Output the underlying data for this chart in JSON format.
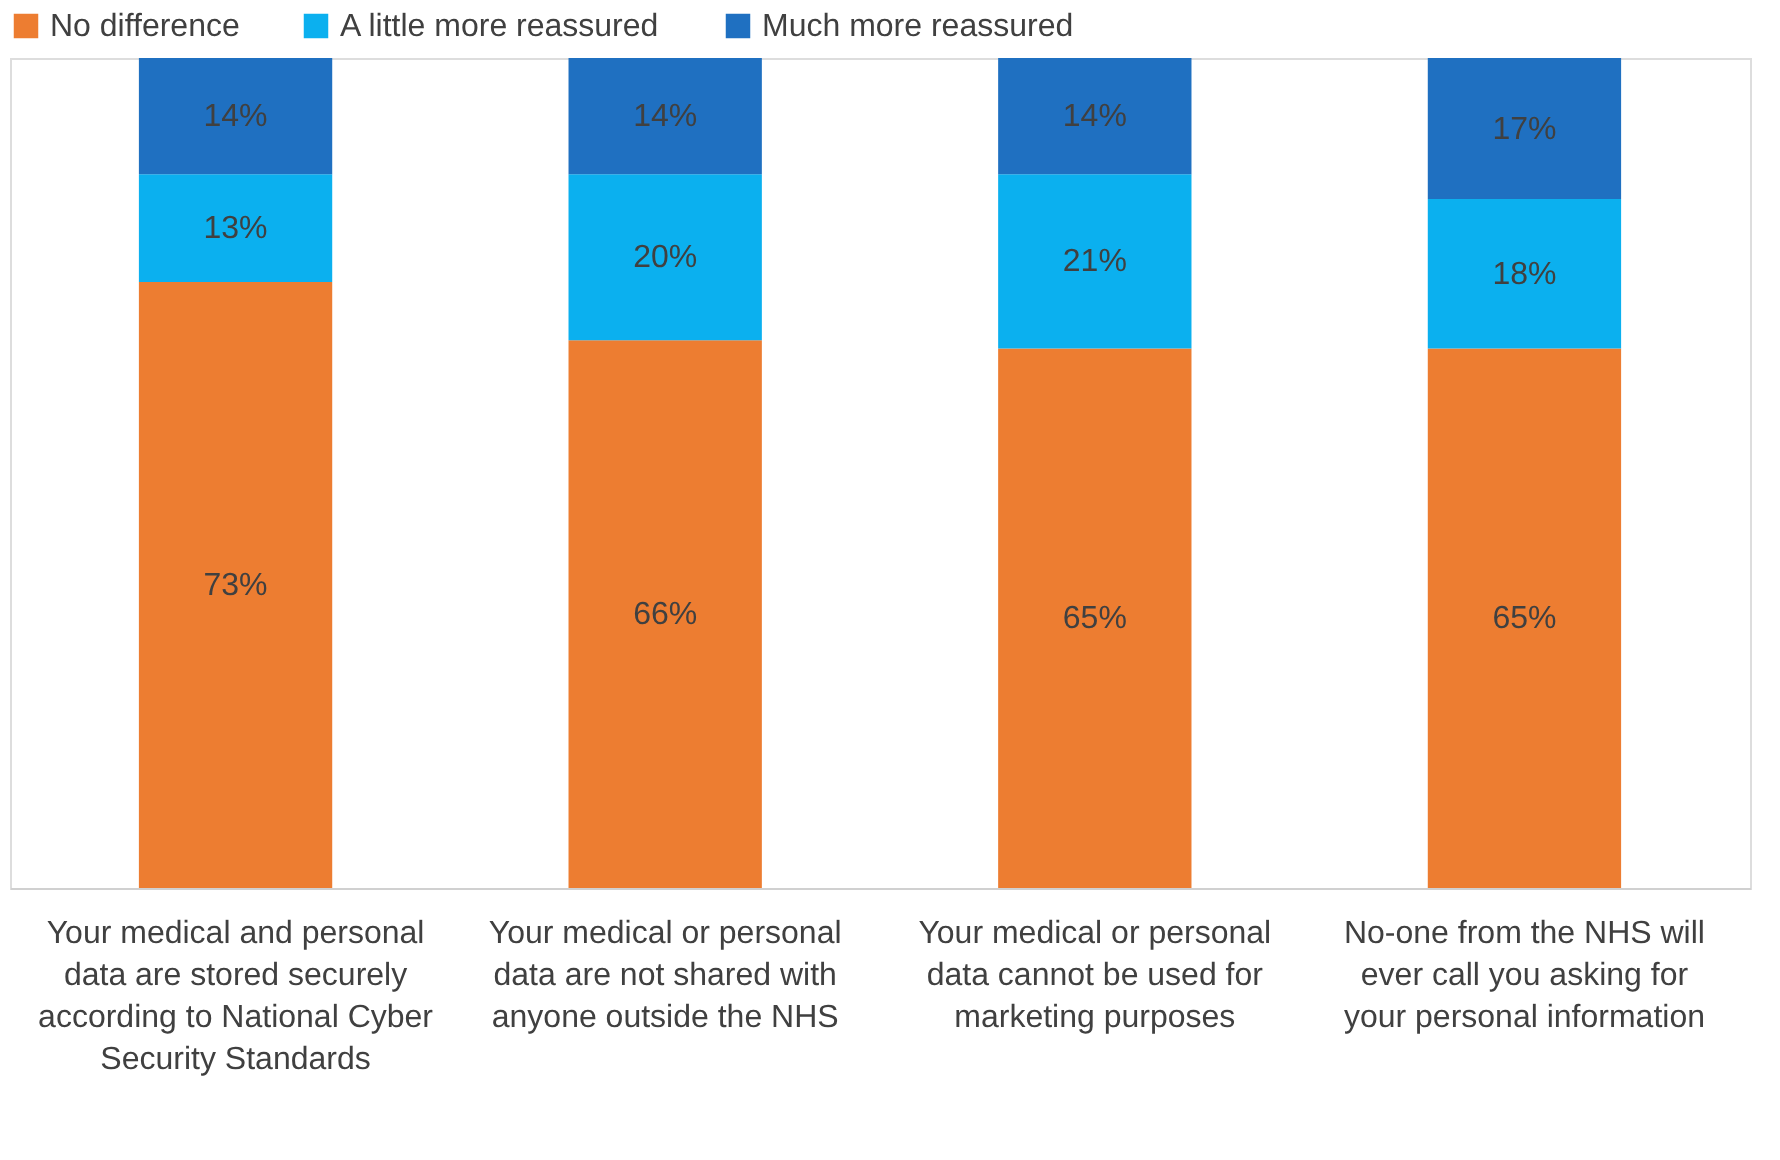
{
  "chart_data": {
    "type": "bar",
    "stacked": true,
    "legend": "top",
    "grid": false,
    "tick_labels": "x",
    "ylim": [
      0,
      100
    ],
    "categories": [
      "Your medical and personal data are stored securely according to National Cyber Security Standards",
      "Your medical or personal data are not shared with anyone outside the NHS",
      "Your medical or personal data cannot be used for marketing purposes",
      "No-one from the NHS will ever call you asking for your personal information"
    ],
    "series": [
      {
        "name": "No difference",
        "color": "#ed7d31",
        "values": [
          73,
          66,
          65,
          65
        ],
        "value_labels": [
          "73%",
          "66%",
          "65%",
          "65%"
        ]
      },
      {
        "name": "A little more reassured",
        "color": "#0bb0ef",
        "values": [
          13,
          20,
          21,
          18
        ],
        "value_labels": [
          "13%",
          "20%",
          "21%",
          "18%"
        ]
      },
      {
        "name": "Much more reassured",
        "color": "#1f70c1",
        "values": [
          14,
          14,
          14,
          17
        ],
        "value_labels": [
          "14%",
          "14%",
          "14%",
          "17%"
        ]
      }
    ]
  }
}
